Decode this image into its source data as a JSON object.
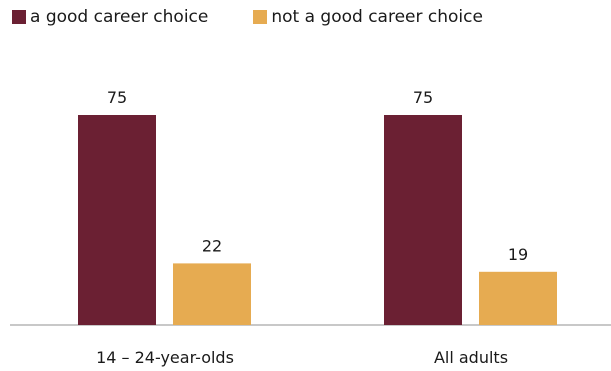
{
  "chart_data": {
    "type": "bar",
    "categories": [
      "14 – 24-year-olds",
      "All adults"
    ],
    "series": [
      {
        "name": "a good career choice",
        "values": [
          75,
          75
        ],
        "color": "#6b2033"
      },
      {
        "name": "not a good career choice",
        "values": [
          22,
          19
        ],
        "color": "#e6ab51"
      }
    ],
    "ylim": [
      0,
      100
    ],
    "grid": false,
    "legend_position": "top-left"
  }
}
